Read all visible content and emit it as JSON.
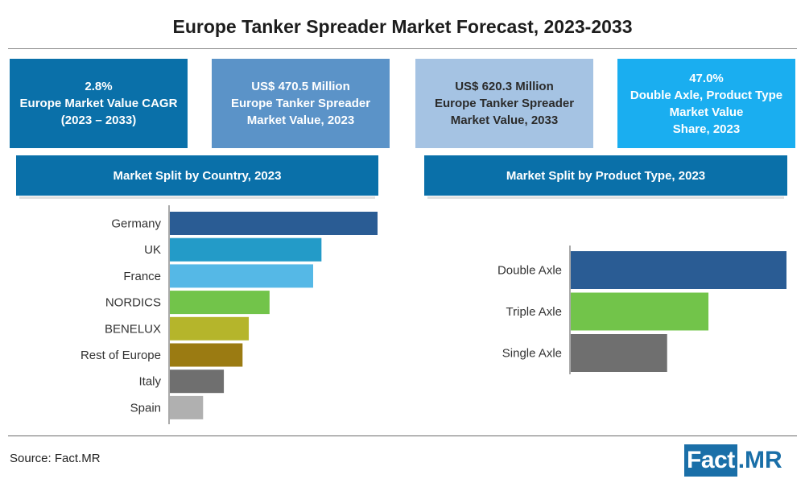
{
  "title": "Europe Tanker Spreader Market Forecast, 2023-2033",
  "stats": [
    {
      "lines": [
        "2.8%",
        "Europe Market Value CAGR",
        "(2023 – 2033)"
      ],
      "color": "#0a70a9"
    },
    {
      "lines": [
        "US$ 470.5 Million",
        "Europe Tanker Spreader",
        "Market Value, 2023"
      ],
      "color": "#5b93c8"
    },
    {
      "lines": [
        "US$ 620.3 Million",
        "Europe Tanker Spreader",
        "Market Value, 2033"
      ],
      "color": "#a5c3e3"
    },
    {
      "lines": [
        "47.0%",
        "Double Axle, Product Type",
        "Market Value",
        "Share, 2023"
      ],
      "color": "#1aaef0"
    }
  ],
  "split_country_label": "Market Split by Country, 2023",
  "split_product_label": "Market Split by Product Type, 2023",
  "source": "Source: Fact.MR",
  "logo": {
    "left": "Fact",
    "right": ".MR"
  },
  "chart_data": [
    {
      "type": "bar",
      "orientation": "horizontal",
      "title": "Market Split by Country, 2023",
      "categories": [
        "Germany",
        "UK",
        "France",
        "NORDICS",
        "BENELUX",
        "Rest of Europe",
        "Italy",
        "Spain"
      ],
      "values": [
        100,
        73,
        69,
        48,
        38,
        35,
        26,
        16
      ],
      "colors": [
        "#2a5c94",
        "#239bc8",
        "#55b8e6",
        "#72c44a",
        "#b5b52b",
        "#9b7b12",
        "#6f6f6f",
        "#b0b0b0"
      ],
      "xlim": [
        0,
        100
      ],
      "grid": false,
      "legend": "none"
    },
    {
      "type": "bar",
      "orientation": "horizontal",
      "title": "Market Split by Product Type, 2023",
      "categories": [
        "Double Axle",
        "Triple Axle",
        "Single Axle"
      ],
      "values": [
        47.0,
        30,
        21
      ],
      "colors": [
        "#2a5c94",
        "#72c44a",
        "#6f6f6f"
      ],
      "xlim": [
        0,
        47.0
      ],
      "grid": false,
      "legend": "none"
    }
  ]
}
